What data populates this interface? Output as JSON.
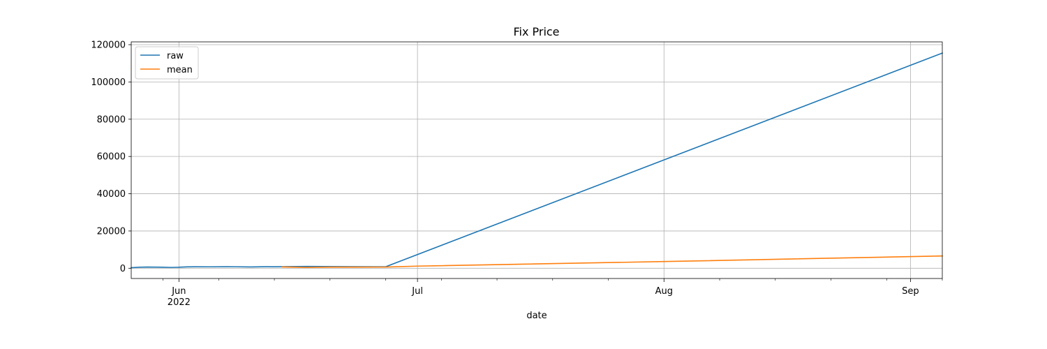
{
  "chart_data": {
    "type": "line",
    "title": "Fix Price",
    "xlabel": "date",
    "ylabel": "",
    "x_axis": {
      "type": "date",
      "range": [
        "2022-05-26",
        "2022-09-05"
      ],
      "major_ticks": [
        {
          "date": "2022-06-01",
          "label": "Jun",
          "sublabel": "2022"
        },
        {
          "date": "2022-07-01",
          "label": "Jul",
          "sublabel": ""
        },
        {
          "date": "2022-08-01",
          "label": "Aug",
          "sublabel": ""
        },
        {
          "date": "2022-09-01",
          "label": "Sep",
          "sublabel": ""
        }
      ],
      "minor_ticks": [
        "2022-05-30",
        "2022-06-06",
        "2022-06-13",
        "2022-06-20",
        "2022-06-27",
        "2022-07-04",
        "2022-07-11",
        "2022-07-18",
        "2022-07-25",
        "2022-08-08",
        "2022-08-15",
        "2022-08-22",
        "2022-08-29",
        "2022-09-05"
      ]
    },
    "y_axis": {
      "ylim": [
        -5500,
        121500
      ],
      "ticks": [
        0,
        20000,
        40000,
        60000,
        80000,
        100000,
        120000
      ],
      "tick_labels": [
        "0",
        "20000",
        "40000",
        "60000",
        "80000",
        "100000",
        "120000"
      ]
    },
    "grid": true,
    "legend": {
      "position": "top-left"
    },
    "series": [
      {
        "name": "raw",
        "color": "#1f77b4",
        "points": [
          [
            "2022-05-26",
            300
          ],
          [
            "2022-05-27",
            550
          ],
          [
            "2022-05-28",
            650
          ],
          [
            "2022-05-29",
            620
          ],
          [
            "2022-05-30",
            580
          ],
          [
            "2022-05-31",
            450
          ],
          [
            "2022-06-01",
            550
          ],
          [
            "2022-06-02",
            750
          ],
          [
            "2022-06-03",
            800
          ],
          [
            "2022-06-05",
            780
          ],
          [
            "2022-06-07",
            850
          ],
          [
            "2022-06-08",
            820
          ],
          [
            "2022-06-10",
            700
          ],
          [
            "2022-06-12",
            850
          ],
          [
            "2022-06-13",
            800
          ],
          [
            "2022-06-15",
            900
          ],
          [
            "2022-06-17",
            1000
          ],
          [
            "2022-06-19",
            950
          ],
          [
            "2022-06-21",
            900
          ],
          [
            "2022-06-26",
            800
          ],
          [
            "2022-06-27",
            800
          ],
          [
            "2022-09-05",
            115500
          ]
        ]
      },
      {
        "name": "mean",
        "color": "#ff7f0e",
        "points": [
          [
            "2022-06-14",
            700
          ],
          [
            "2022-06-17",
            450
          ],
          [
            "2022-06-20",
            600
          ],
          [
            "2022-06-27",
            650
          ],
          [
            "2022-07-01",
            1150
          ],
          [
            "2022-08-01",
            3600
          ],
          [
            "2022-09-05",
            6600
          ]
        ]
      }
    ]
  }
}
